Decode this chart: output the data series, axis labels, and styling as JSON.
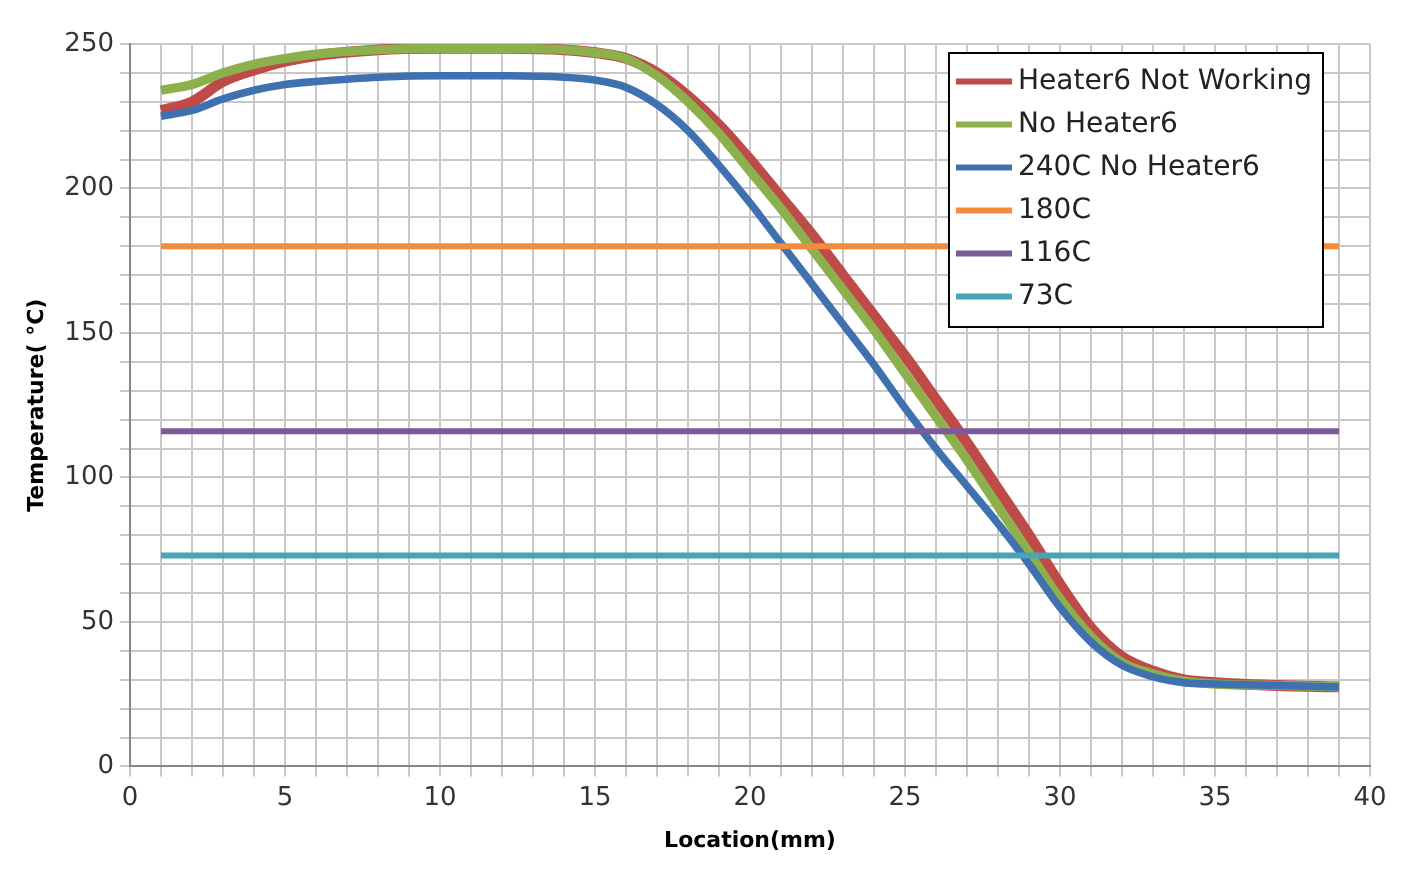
{
  "chart_data": {
    "type": "line",
    "xlabel": "Location(mm)",
    "ylabel": "Temperature( °C)",
    "xlim": [
      0,
      40
    ],
    "xticks": [
      0,
      5,
      10,
      15,
      20,
      25,
      30,
      35,
      40
    ],
    "ylim": [
      0,
      250
    ],
    "yticks": [
      0,
      50,
      100,
      150,
      200,
      250
    ],
    "grid": true,
    "legend": "top right",
    "marker": "none",
    "line_style": "solid",
    "series": [
      {
        "name": "Heater6 Not Working",
        "color": "#be4b48",
        "x": [
          1,
          2,
          3,
          4,
          5,
          6,
          8,
          10,
          12,
          14,
          15,
          16,
          17,
          18,
          19,
          20,
          21,
          22,
          23,
          24,
          25,
          26,
          27,
          28,
          29,
          30,
          31,
          32,
          33,
          34,
          35,
          37,
          39
        ],
        "values": [
          227,
          230,
          237,
          241,
          244,
          246,
          248,
          248.5,
          248.5,
          248,
          247,
          245,
          240,
          232,
          222,
          210,
          197,
          184,
          170,
          156,
          142,
          127,
          112,
          96,
          80,
          63,
          48,
          38,
          33,
          30,
          29,
          28,
          27.5
        ]
      },
      {
        "name": "No Heater6",
        "color": "#8cb04c",
        "x": [
          1,
          2,
          3,
          4,
          5,
          6,
          8,
          10,
          12,
          14,
          15,
          16,
          17,
          18,
          19,
          20,
          21,
          22,
          23,
          24,
          25,
          26,
          27,
          28,
          29,
          30,
          31,
          32,
          33,
          34,
          35,
          37,
          39
        ],
        "values": [
          234,
          236,
          240,
          243,
          245,
          246.5,
          248,
          248.5,
          248.5,
          248,
          247,
          245,
          239,
          230,
          219,
          206,
          193,
          179,
          165,
          151,
          136,
          121,
          106,
          90,
          74,
          58,
          45,
          36,
          32,
          29.5,
          28.5,
          28,
          27.5
        ]
      },
      {
        "name": "240C No Heater6",
        "color": "#3f70b0",
        "x": [
          1,
          2,
          3,
          4,
          5,
          6,
          8,
          10,
          12,
          14,
          15,
          16,
          17,
          18,
          19,
          20,
          21,
          22,
          23,
          24,
          25,
          26,
          27,
          28,
          29,
          30,
          31,
          32,
          33,
          34,
          35,
          37,
          39
        ],
        "values": [
          225,
          227,
          231,
          234,
          236,
          237,
          238.5,
          239,
          239,
          238.5,
          237.5,
          235,
          229,
          220,
          208,
          195,
          181,
          167,
          153,
          139,
          124,
          110,
          97,
          84,
          70,
          55,
          43,
          35,
          31,
          29,
          28.5,
          28,
          27.5
        ]
      },
      {
        "name": "180C",
        "color": "#f38b3b",
        "x": [
          1,
          39
        ],
        "values": [
          180,
          180
        ]
      },
      {
        "name": "116C",
        "color": "#7b5a9a",
        "x": [
          1,
          39
        ],
        "values": [
          116,
          116
        ]
      },
      {
        "name": "73C",
        "color": "#48a3b5",
        "x": [
          1,
          39
        ],
        "values": [
          73,
          73
        ]
      }
    ]
  }
}
